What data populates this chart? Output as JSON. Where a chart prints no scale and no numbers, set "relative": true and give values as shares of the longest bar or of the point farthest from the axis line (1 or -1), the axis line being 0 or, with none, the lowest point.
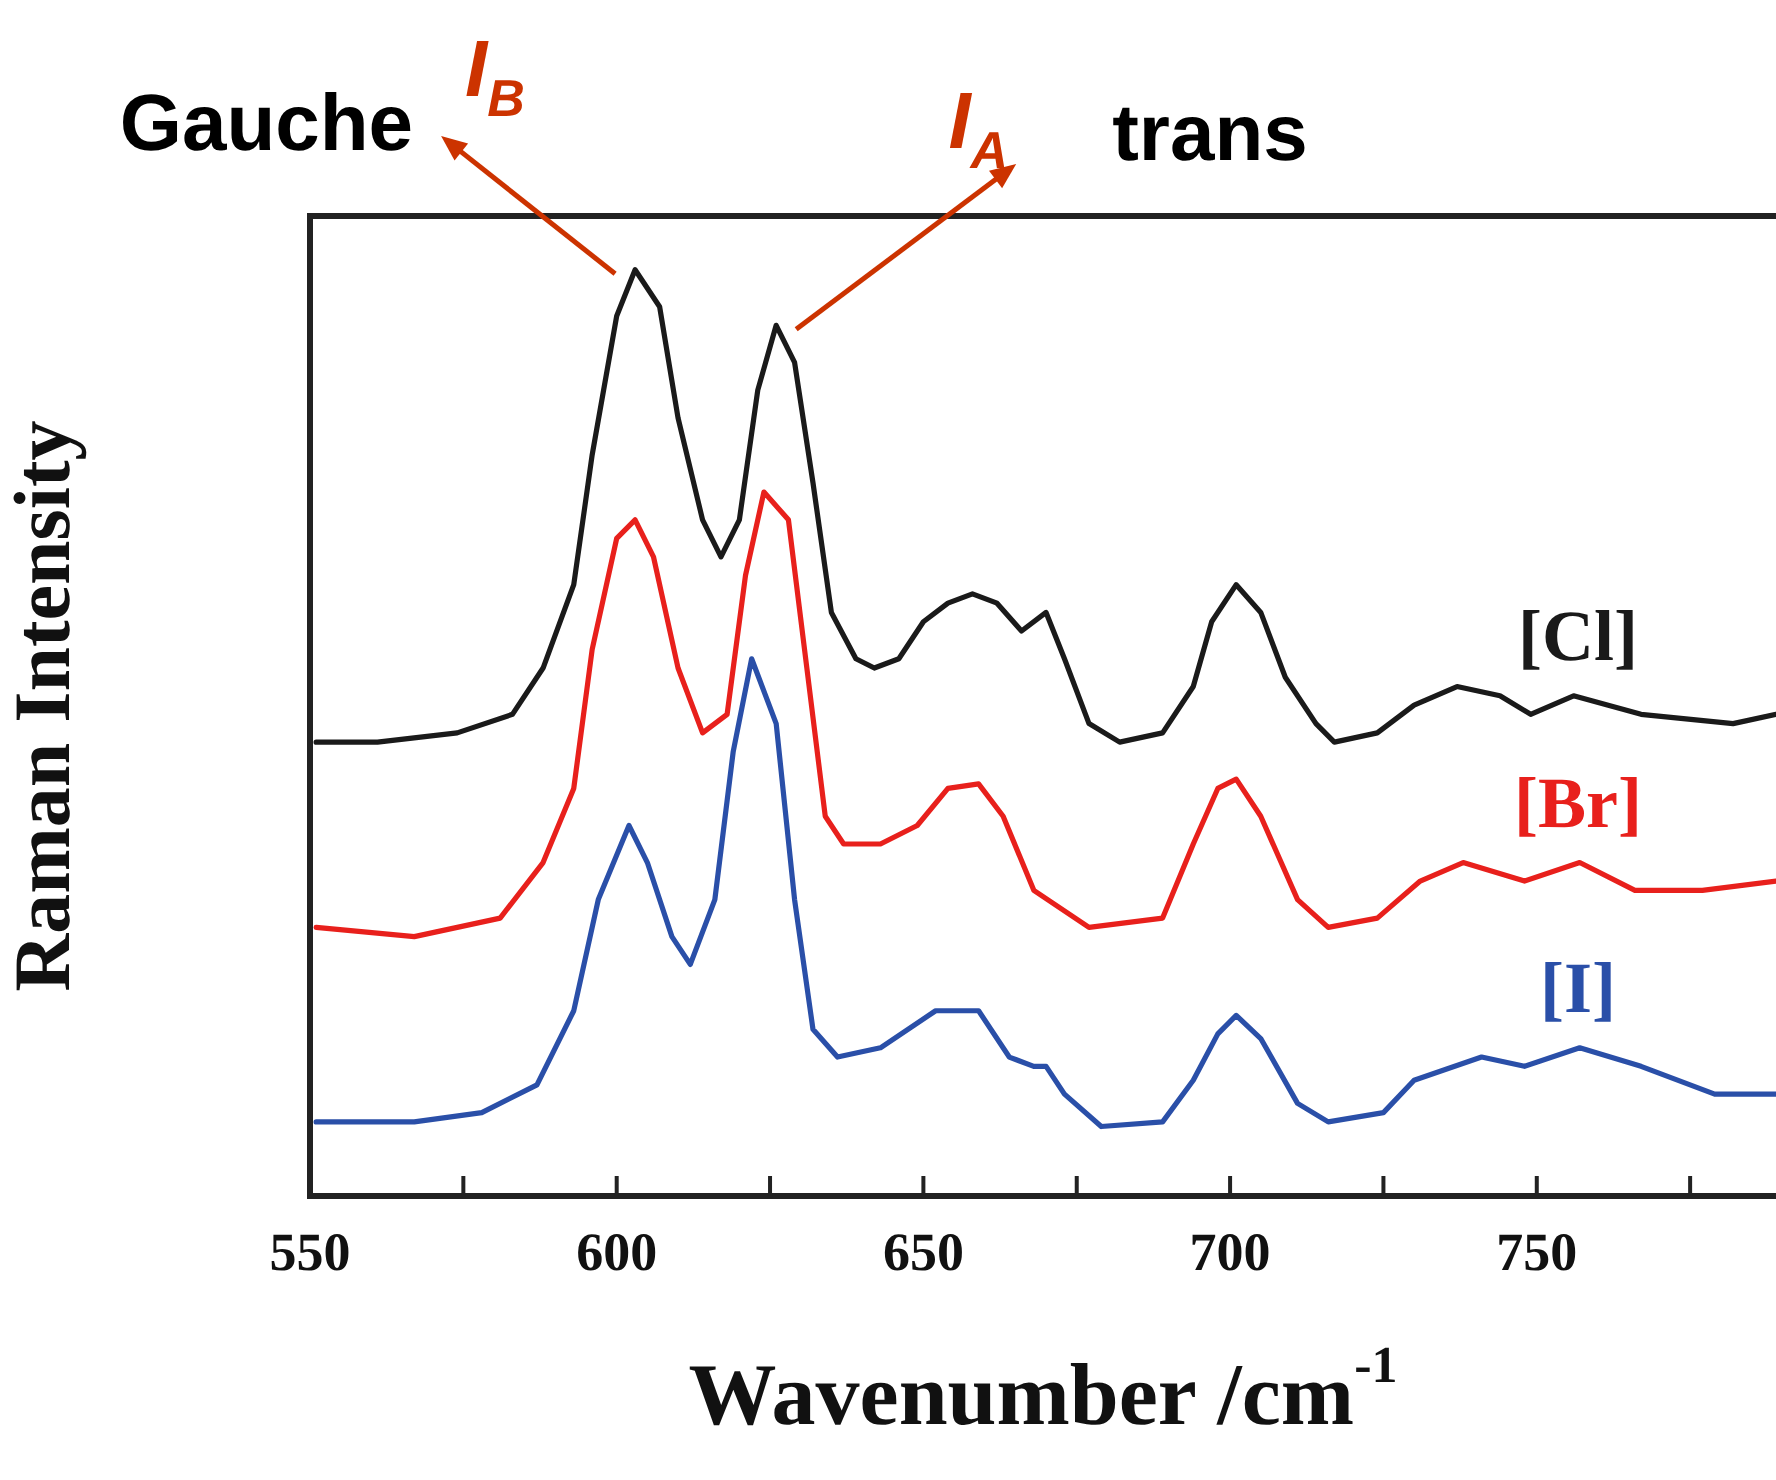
{
  "chart_data": {
    "type": "line",
    "relative": true,
    "ylabel": "Raman Intensity",
    "xlabel": "Wavenumber /cm$^{-1}$",
    "xlim": [
      550,
      789
    ],
    "xticks": [
      550,
      {
        "value": 575,
        "label": null
      },
      600,
      {
        "value": 625,
        "label": null
      },
      650,
      {
        "value": 675,
        "label": null
      },
      700,
      {
        "value": 725,
        "label": null
      },
      750,
      {
        "value": 775,
        "label": null
      }
    ],
    "grid": false,
    "legend": false,
    "marker": "none",
    "line_style": "solid",
    "annotations": [
      "Gauche",
      {
        "text": "I$_{B}$",
        "x": 603,
        "y": 1.0
      },
      {
        "text": "I$_{A}$",
        "x": 626,
        "y": 0.94
      },
      "trans"
    ],
    "series": [
      {
        "name": "[Cl]",
        "color": "#1a1a1a",
        "x": [
          551,
          561,
          574,
          583,
          588,
          593,
          596,
          600,
          603,
          607,
          610,
          614,
          617,
          620,
          623,
          626,
          629,
          632,
          635,
          639,
          642,
          646,
          650,
          654,
          658,
          662,
          666,
          670,
          673,
          677,
          682,
          689,
          694,
          697,
          701,
          705,
          709,
          714,
          717,
          724,
          730,
          737,
          744,
          749,
          756,
          767,
          782,
          789
        ],
        "values": [
          0.49,
          0.49,
          0.5,
          0.52,
          0.57,
          0.66,
          0.8,
          0.95,
          1.0,
          0.96,
          0.84,
          0.73,
          0.69,
          0.73,
          0.87,
          0.94,
          0.9,
          0.77,
          0.63,
          0.58,
          0.57,
          0.58,
          0.62,
          0.64,
          0.65,
          0.64,
          0.61,
          0.63,
          0.58,
          0.51,
          0.49,
          0.5,
          0.55,
          0.62,
          0.66,
          0.63,
          0.56,
          0.51,
          0.49,
          0.5,
          0.53,
          0.55,
          0.54,
          0.52,
          0.54,
          0.52,
          0.51,
          0.52
        ]
      },
      {
        "name": "[Br]",
        "color": "#e8201c",
        "x": [
          551,
          567,
          581,
          588,
          593,
          596,
          600,
          603,
          606,
          610,
          614,
          618,
          621,
          624,
          628,
          631,
          634,
          637,
          643,
          649,
          654,
          659,
          663,
          668,
          677,
          689,
          694,
          698,
          701,
          705,
          711,
          716,
          724,
          731,
          738,
          748,
          757,
          766,
          777,
          789
        ],
        "values": [
          0.29,
          0.28,
          0.3,
          0.36,
          0.44,
          0.59,
          0.71,
          0.73,
          0.69,
          0.57,
          0.5,
          0.52,
          0.67,
          0.76,
          0.73,
          0.57,
          0.41,
          0.38,
          0.38,
          0.4,
          0.44,
          0.445,
          0.41,
          0.33,
          0.29,
          0.3,
          0.38,
          0.44,
          0.45,
          0.41,
          0.32,
          0.29,
          0.3,
          0.34,
          0.36,
          0.34,
          0.36,
          0.33,
          0.33,
          0.34
        ]
      },
      {
        "name": "[I]",
        "color": "#2a4fa8",
        "x": [
          551,
          567,
          578,
          587,
          593,
          597,
          602,
          605,
          609,
          612,
          616,
          619,
          622,
          626,
          629,
          632,
          636,
          643,
          652,
          659,
          664,
          668,
          670,
          673,
          679,
          689,
          694,
          698,
          701,
          705,
          711,
          716,
          725,
          730,
          741,
          748,
          757,
          767,
          779,
          789
        ],
        "values": [
          0.08,
          0.08,
          0.09,
          0.12,
          0.2,
          0.32,
          0.4,
          0.36,
          0.28,
          0.25,
          0.32,
          0.48,
          0.58,
          0.51,
          0.32,
          0.18,
          0.15,
          0.16,
          0.2,
          0.2,
          0.15,
          0.14,
          0.14,
          0.11,
          0.075,
          0.08,
          0.125,
          0.175,
          0.195,
          0.17,
          0.1,
          0.08,
          0.09,
          0.125,
          0.15,
          0.14,
          0.16,
          0.14,
          0.11,
          0.11
        ]
      }
    ]
  }
}
